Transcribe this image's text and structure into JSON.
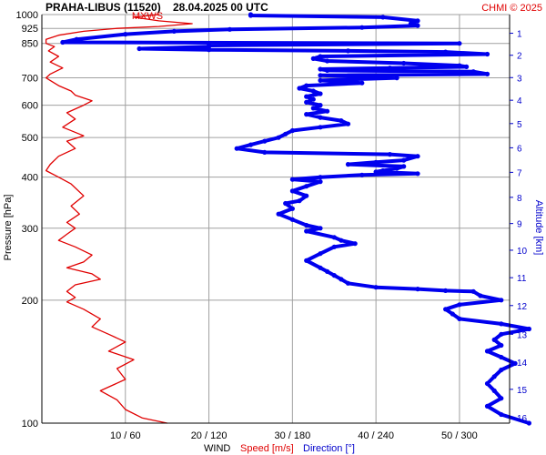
{
  "chart_data": {
    "type": "line",
    "title": "PRAHA-LIBUS (11520)",
    "datetime": "28.04.2025 00 UTC",
    "copyright": "CHMI © 2025",
    "max_label": "MXWS",
    "ylabel_left": "Pressure [hPa]",
    "ylabel_right": "Altitude [km]",
    "xlabel_prefix": "WIND",
    "xlabel_speed": "Speed [m/s]",
    "xlabel_dir": "Direction [°]",
    "y_scale": "log",
    "ylim": [
      1000,
      100
    ],
    "grid": true,
    "pressure_ticks": [
      "100",
      "200",
      "300",
      "400",
      "500",
      "600",
      "700",
      "850",
      "925",
      "1000"
    ],
    "altitude_ticks": [
      "1",
      "2",
      "3",
      "4",
      "5",
      "6",
      "7",
      "8",
      "9",
      "10",
      "11",
      "12",
      "13",
      "14",
      "15",
      "16"
    ],
    "x_ticks": [
      "10 / 60",
      "20 / 120",
      "30 / 180",
      "40 / 240",
      "50 / 300"
    ],
    "colors": {
      "speed": "#e00000",
      "direction": "#0000ee",
      "grid": "#a0a0a0"
    },
    "series": [
      {
        "name": "Speed [m/s]",
        "axis": "speed",
        "points": [
          [
            14,
            1000
          ],
          [
            11,
            985
          ],
          [
            14,
            965
          ],
          [
            18,
            950
          ],
          [
            14,
            935
          ],
          [
            9,
            925
          ],
          [
            5,
            910
          ],
          [
            2,
            890
          ],
          [
            0.5,
            870
          ],
          [
            0.5,
            850
          ],
          [
            1.5,
            835
          ],
          [
            0.8,
            815
          ],
          [
            2,
            790
          ],
          [
            1,
            765
          ],
          [
            2.5,
            740
          ],
          [
            1,
            715
          ],
          [
            0.5,
            700
          ],
          [
            1,
            690
          ],
          [
            2,
            670
          ],
          [
            3.5,
            650
          ],
          [
            4,
            635
          ],
          [
            6,
            615
          ],
          [
            5,
            600
          ],
          [
            3,
            575
          ],
          [
            4,
            555
          ],
          [
            2.5,
            530
          ],
          [
            5,
            505
          ],
          [
            3,
            490
          ],
          [
            4,
            470
          ],
          [
            2,
            450
          ],
          [
            1,
            430
          ],
          [
            0.5,
            415
          ],
          [
            2,
            400
          ],
          [
            3.5,
            385
          ],
          [
            5,
            360
          ],
          [
            3.5,
            340
          ],
          [
            4.5,
            325
          ],
          [
            3,
            310
          ],
          [
            4,
            300
          ],
          [
            3,
            290
          ],
          [
            2,
            280
          ],
          [
            4,
            270
          ],
          [
            6,
            258
          ],
          [
            5,
            248
          ],
          [
            3,
            240
          ],
          [
            6,
            232
          ],
          [
            7,
            225
          ],
          [
            4,
            218
          ],
          [
            3,
            210
          ],
          [
            4,
            203
          ],
          [
            3,
            198
          ],
          [
            5,
            190
          ],
          [
            7,
            180
          ],
          [
            6,
            172
          ],
          [
            8,
            165
          ],
          [
            10,
            158
          ],
          [
            8,
            150
          ],
          [
            11,
            143
          ],
          [
            9,
            136
          ],
          [
            10,
            128
          ],
          [
            7,
            120
          ],
          [
            9,
            114
          ],
          [
            10,
            108
          ],
          [
            12,
            103
          ],
          [
            15,
            100
          ]
        ]
      },
      {
        "name": "Direction [°]",
        "axis": "direction",
        "points": [
          [
            150,
            1000
          ],
          [
            150,
            995
          ],
          [
            245,
            985
          ],
          [
            270,
            965
          ],
          [
            265,
            950
          ],
          [
            270,
            940
          ],
          [
            230,
            930
          ],
          [
            135,
            920
          ],
          [
            95,
            910
          ],
          [
            60,
            895
          ],
          [
            25,
            870
          ],
          [
            15,
            855
          ],
          [
            300,
            850
          ],
          [
            120,
            840
          ],
          [
            120,
            835
          ],
          [
            70,
            825
          ],
          [
            120,
            820
          ],
          [
            220,
            815
          ],
          [
            290,
            810
          ],
          [
            320,
            800
          ],
          [
            200,
            790
          ],
          [
            195,
            780
          ],
          [
            205,
            770
          ],
          [
            260,
            760
          ],
          [
            300,
            750
          ],
          [
            305,
            745
          ],
          [
            250,
            740
          ],
          [
            200,
            735
          ],
          [
            205,
            730
          ],
          [
            310,
            725
          ],
          [
            320,
            715
          ],
          [
            200,
            710
          ],
          [
            255,
            700
          ],
          [
            200,
            690
          ],
          [
            230,
            680
          ],
          [
            190,
            670
          ],
          [
            185,
            660
          ],
          [
            195,
            650
          ],
          [
            200,
            640
          ],
          [
            190,
            630
          ],
          [
            195,
            620
          ],
          [
            190,
            610
          ],
          [
            200,
            600
          ],
          [
            195,
            590
          ],
          [
            205,
            580
          ],
          [
            190,
            570
          ],
          [
            200,
            560
          ],
          [
            215,
            550
          ],
          [
            220,
            540
          ],
          [
            200,
            530
          ],
          [
            180,
            520
          ],
          [
            175,
            510
          ],
          [
            170,
            500
          ],
          [
            160,
            490
          ],
          [
            150,
            480
          ],
          [
            140,
            470
          ],
          [
            160,
            460
          ],
          [
            250,
            455
          ],
          [
            270,
            450
          ],
          [
            260,
            440
          ],
          [
            240,
            435
          ],
          [
            220,
            430
          ],
          [
            260,
            425
          ],
          [
            255,
            420
          ],
          [
            245,
            415
          ],
          [
            240,
            412
          ],
          [
            270,
            408
          ],
          [
            230,
            405
          ],
          [
            200,
            400
          ],
          [
            180,
            395
          ],
          [
            200,
            390
          ],
          [
            190,
            380
          ],
          [
            180,
            370
          ],
          [
            190,
            360
          ],
          [
            185,
            350
          ],
          [
            175,
            345
          ],
          [
            180,
            335
          ],
          [
            170,
            325
          ],
          [
            180,
            315
          ],
          [
            190,
            305
          ],
          [
            200,
            300
          ],
          [
            190,
            295
          ],
          [
            210,
            285
          ],
          [
            215,
            280
          ],
          [
            225,
            275
          ],
          [
            210,
            270
          ],
          [
            200,
            260
          ],
          [
            190,
            250
          ],
          [
            200,
            240
          ],
          [
            205,
            235
          ],
          [
            210,
            230
          ],
          [
            215,
            225
          ],
          [
            220,
            220
          ],
          [
            240,
            215
          ],
          [
            270,
            213
          ],
          [
            290,
            211
          ],
          [
            310,
            210
          ],
          [
            315,
            205
          ],
          [
            330,
            200
          ],
          [
            300,
            195
          ],
          [
            290,
            190
          ],
          [
            295,
            185
          ],
          [
            300,
            180
          ],
          [
            330,
            175
          ],
          [
            350,
            170
          ],
          [
            330,
            165
          ],
          [
            325,
            160
          ],
          [
            330,
            155
          ],
          [
            320,
            150
          ],
          [
            330,
            145
          ],
          [
            340,
            140
          ],
          [
            330,
            135
          ],
          [
            325,
            130
          ],
          [
            320,
            125
          ],
          [
            325,
            120
          ],
          [
            330,
            115
          ],
          [
            320,
            110
          ],
          [
            330,
            105
          ],
          [
            350,
            100
          ]
        ]
      }
    ]
  }
}
